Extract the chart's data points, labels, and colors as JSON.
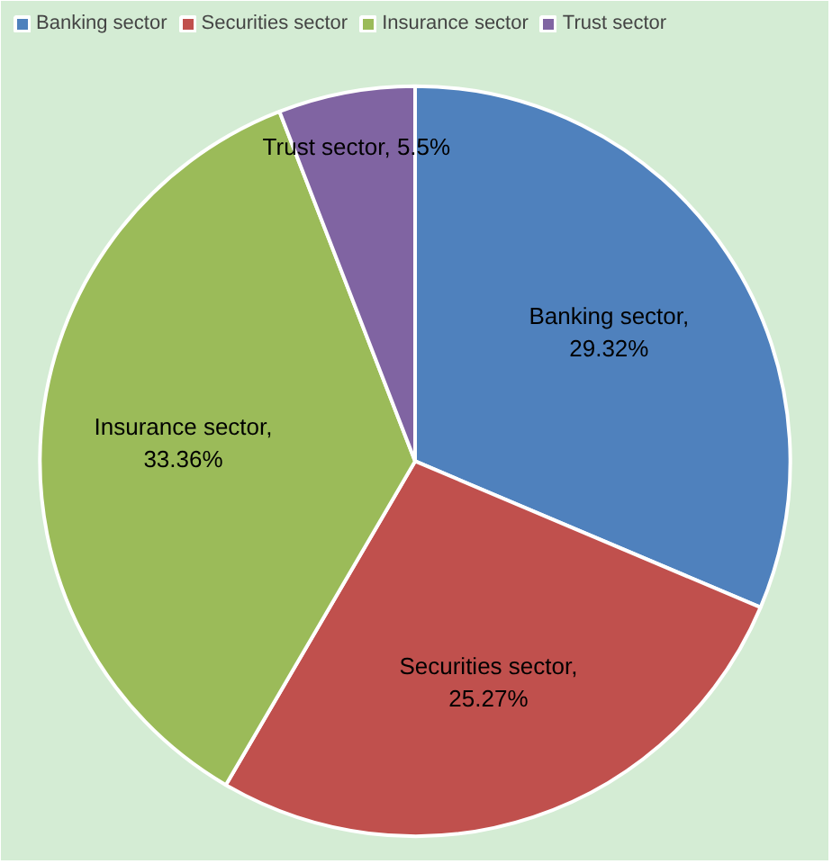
{
  "chart_data": {
    "type": "pie",
    "categories": [
      "Banking sector",
      "Securities sector",
      "Insurance sector",
      "Trust sector"
    ],
    "values": [
      29.32,
      25.27,
      33.36,
      5.5
    ],
    "colors": [
      "#4f81bd",
      "#c0504d",
      "#9bbb59",
      "#8064a2"
    ],
    "value_labels": [
      "Banking sector,\n29.32%",
      "Securities sector,\n25.27%",
      "Insurance sector,\n33.36%",
      "Trust sector, 5.5%"
    ],
    "legend": "top"
  }
}
